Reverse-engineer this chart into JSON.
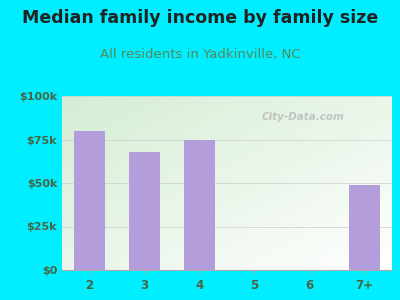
{
  "title": "Median family income by family size",
  "subtitle": "All residents in Yadkinville, NC",
  "categories": [
    "2",
    "3",
    "4",
    "5",
    "6",
    "7+"
  ],
  "values": [
    80000,
    68000,
    75000,
    0,
    0,
    49000
  ],
  "bar_color": "#b39ddb",
  "background_color": "#00eeff",
  "plot_bg_color_topleft": "#d4edd4",
  "plot_bg_color_right": "#f5fff5",
  "plot_bg_color_bottom": "#ffffff",
  "title_color": "#222222",
  "subtitle_color": "#558855",
  "axis_label_color": "#446644",
  "ytick_labels": [
    "$0",
    "$25k",
    "$50k",
    "$75k",
    "$100k"
  ],
  "ytick_values": [
    0,
    25000,
    50000,
    75000,
    100000
  ],
  "ylim": [
    0,
    100000
  ],
  "title_fontsize": 12.5,
  "subtitle_fontsize": 9.5,
  "watermark": "City-Data.com"
}
